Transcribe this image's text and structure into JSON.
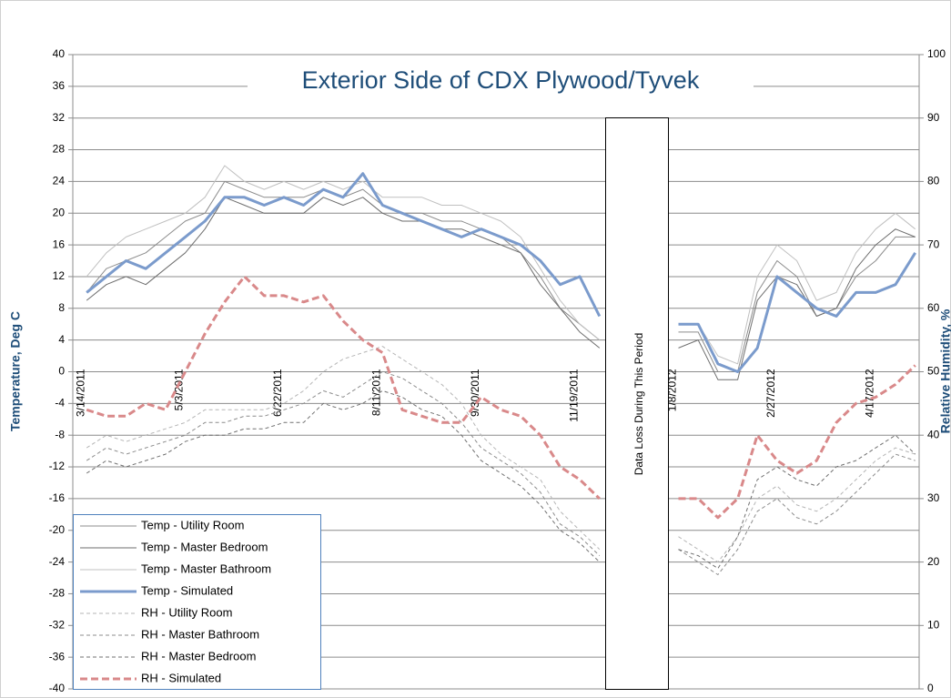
{
  "chart_data": {
    "type": "line",
    "title": "Exterior Side of CDX Plywood/Tyvek",
    "y_label": "Temperature, Deg C",
    "y2_label": "Relative Humidity, %",
    "annotation": "Data Loss During This Period",
    "x": [
      "3/14/2011",
      "3/24/2011",
      "4/3/2011",
      "4/13/2011",
      "4/23/2011",
      "5/3/2011",
      "5/13/2011",
      "5/23/2011",
      "6/2/2011",
      "6/12/2011",
      "6/22/2011",
      "7/2/2011",
      "7/12/2011",
      "7/22/2011",
      "8/1/2011",
      "8/11/2011",
      "8/21/2011",
      "8/31/2011",
      "9/10/2011",
      "9/20/2011",
      "9/30/2011",
      "10/10/2011",
      "10/20/2011",
      "10/30/2011",
      "11/9/2011",
      "11/19/2011",
      "11/29/2011",
      "12/9/2011",
      "12/19/2011",
      "12/29/2011",
      "1/8/2012",
      "1/18/2012",
      "1/28/2012",
      "2/7/2012",
      "2/17/2012",
      "2/27/2012",
      "3/8/2012",
      "3/18/2012",
      "3/28/2012",
      "4/7/2012",
      "4/17/2012",
      "4/27/2012",
      "5/7/2012"
    ],
    "xlim": [
      "3/7/2011",
      "5/9/2012"
    ],
    "xticks": [
      "3/14/2011",
      "5/3/2011",
      "6/22/2011",
      "8/11/2011",
      "9/30/2011",
      "11/19/2011",
      "1/8/2012",
      "2/27/2012",
      "4/17/2012"
    ],
    "ylim": [
      -40,
      40
    ],
    "yticks": [
      -40,
      -36,
      -32,
      -28,
      -24,
      -20,
      -16,
      -12,
      -8,
      -4,
      0,
      4,
      8,
      12,
      16,
      20,
      24,
      28,
      32,
      36,
      40
    ],
    "y2lim": [
      0,
      100
    ],
    "y2ticks": [
      0,
      10,
      20,
      30,
      40,
      50,
      60,
      70,
      80,
      90,
      100
    ],
    "grid": true,
    "legend": "lower left",
    "series": [
      {
        "name": "Temp - Utility Room",
        "color": "#8c8c8c",
        "width": 1,
        "dashed": false,
        "values": [
          10,
          13,
          14,
          15,
          17,
          19,
          20,
          24,
          23,
          22,
          22,
          22,
          23,
          22,
          23,
          21,
          20,
          20,
          19,
          19,
          18,
          17,
          15,
          12,
          8,
          6,
          4,
          null,
          null,
          null,
          5,
          5,
          0,
          0,
          10,
          14,
          12,
          7,
          8,
          12,
          14,
          17,
          17
        ]
      },
      {
        "name": "Temp - Master Bedroom",
        "color": "#6e6e6e",
        "width": 1,
        "dashed": false,
        "values": [
          9,
          11,
          12,
          11,
          13,
          15,
          18,
          22,
          21,
          20,
          20,
          20,
          22,
          21,
          22,
          20,
          19,
          19,
          18,
          18,
          17,
          16,
          15,
          11,
          8,
          5,
          3,
          null,
          null,
          null,
          3,
          4,
          -1,
          -1,
          9,
          12,
          11,
          7,
          8,
          13,
          16,
          18,
          17
        ]
      },
      {
        "name": "Temp - Master Bathroom",
        "color": "#c0c0c0",
        "width": 1,
        "dashed": false,
        "values": [
          12,
          15,
          17,
          18,
          19,
          20,
          22,
          26,
          24,
          23,
          24,
          23,
          24,
          23,
          24,
          22,
          22,
          22,
          21,
          21,
          20,
          19,
          17,
          13,
          9,
          6,
          4,
          null,
          null,
          null,
          6,
          6,
          2,
          1,
          12,
          16,
          14,
          9,
          10,
          15,
          18,
          20,
          18
        ]
      },
      {
        "name": "Temp - Simulated",
        "color": "#7b9bcc",
        "width": 3,
        "dashed": false,
        "values": [
          10,
          12,
          14,
          13,
          15,
          17,
          19,
          22,
          22,
          21,
          22,
          21,
          23,
          22,
          25,
          21,
          20,
          19,
          18,
          17,
          18,
          17,
          16,
          14,
          11,
          12,
          7,
          null,
          null,
          null,
          6,
          6,
          1,
          0,
          3,
          12,
          10,
          8,
          7,
          10,
          10,
          11,
          15
        ]
      },
      {
        "name": "RH - Utility Room",
        "color": "#b5b5b5",
        "width": 1,
        "dashed": true,
        "axis": "y2",
        "values": [
          38,
          40,
          39,
          40,
          41,
          42,
          44,
          44,
          44,
          44,
          45,
          47,
          50,
          52,
          53,
          54,
          52,
          50,
          48,
          45,
          40,
          37,
          35,
          33,
          28,
          25,
          22,
          null,
          null,
          null,
          24,
          22,
          20,
          24,
          30,
          32,
          29,
          28,
          30,
          33,
          36,
          38,
          37
        ]
      },
      {
        "name": "RH - Master Bathroom",
        "color": "#8c8c8c",
        "width": 1,
        "dashed": true,
        "axis": "y2",
        "values": [
          36,
          38,
          37,
          38,
          39,
          40,
          42,
          42,
          43,
          43,
          44,
          45,
          47,
          46,
          48,
          50,
          49,
          47,
          45,
          42,
          38,
          36,
          34,
          31,
          26,
          24,
          21,
          null,
          null,
          null,
          22,
          20,
          18,
          22,
          28,
          30,
          27,
          26,
          28,
          31,
          34,
          37,
          36
        ]
      },
      {
        "name": "RH - Master Bedroom",
        "color": "#707070",
        "width": 1,
        "dashed": true,
        "axis": "y2",
        "values": [
          34,
          36,
          35,
          36,
          37,
          39,
          40,
          40,
          41,
          41,
          42,
          42,
          45,
          44,
          45,
          47,
          46,
          44,
          43,
          40,
          36,
          34,
          32,
          29,
          25,
          23,
          20,
          null,
          null,
          null,
          22,
          21,
          19,
          24,
          33,
          35,
          33,
          32,
          35,
          36,
          38,
          40,
          37
        ]
      },
      {
        "name": "RH - Simulated",
        "color": "#d9898a",
        "width": 3,
        "dashed": true,
        "axis": "y2",
        "values": [
          44,
          43,
          43,
          45,
          44,
          50,
          56,
          61,
          65,
          62,
          62,
          61,
          62,
          58,
          55,
          53,
          44,
          43,
          42,
          42,
          46,
          44,
          43,
          40,
          35,
          33,
          30,
          null,
          null,
          null,
          30,
          30,
          27,
          30,
          40,
          36,
          34,
          36,
          42,
          45,
          46,
          48,
          51
        ]
      }
    ]
  }
}
